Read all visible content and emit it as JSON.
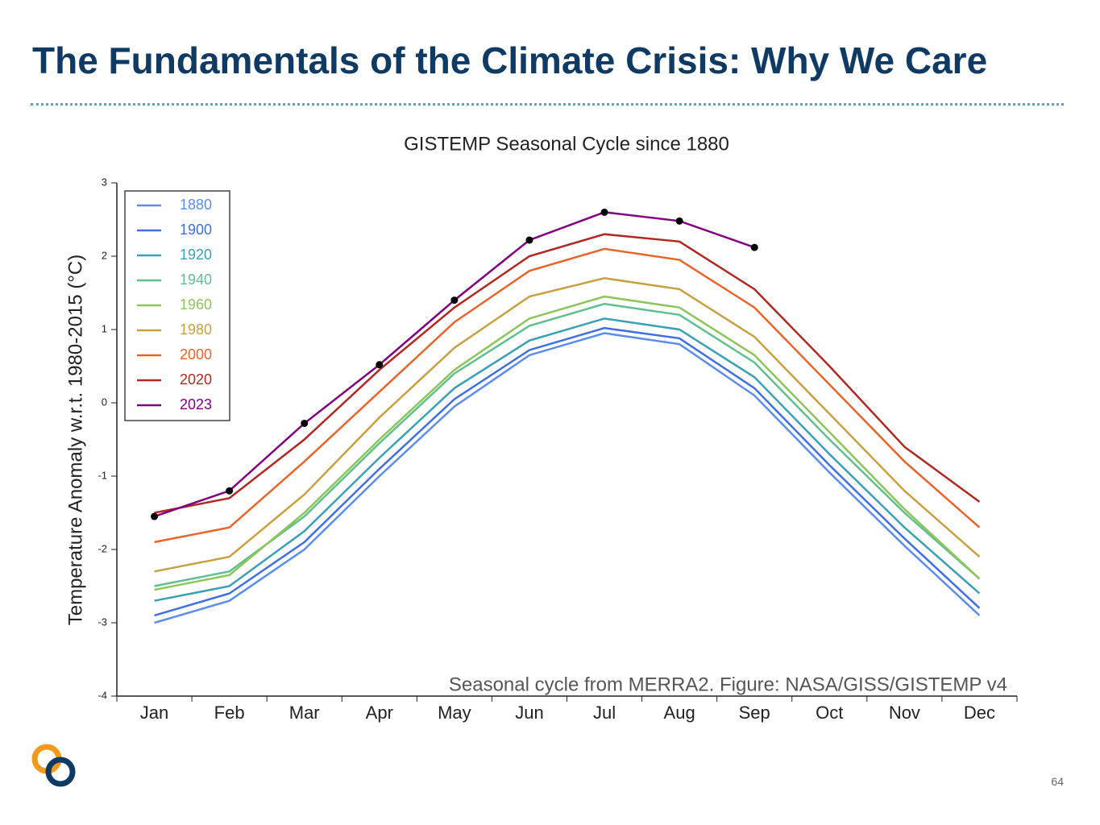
{
  "slide": {
    "title": "The Fundamentals of the Climate Crisis: Why We Care",
    "page_number": "64"
  },
  "chart_data": {
    "type": "line",
    "title": "GISTEMP Seasonal Cycle since 1880",
    "annotation": "Seasonal cycle from MERRA2. Figure: NASA/GISS/GISTEMP v4",
    "y_label": "Temperature Anomaly w.r.t. 1980-2015 (°C)",
    "categories": [
      "Jan",
      "Feb",
      "Mar",
      "Apr",
      "May",
      "Jun",
      "Jul",
      "Aug",
      "Sep",
      "Oct",
      "Nov",
      "Dec"
    ],
    "ylim": [
      -4,
      3
    ],
    "yticks": [
      -4,
      -3,
      -2,
      -1,
      0,
      1,
      2,
      3
    ],
    "legend": "upper left",
    "series": [
      {
        "name": "1880",
        "color": "#5b8def",
        "values": [
          -3.0,
          -2.7,
          -2.0,
          -1.0,
          -0.05,
          0.65,
          0.95,
          0.8,
          0.1,
          -0.95,
          -1.95,
          -2.9
        ]
      },
      {
        "name": "1900",
        "color": "#3f6fe0",
        "values": [
          -2.9,
          -2.6,
          -1.9,
          -0.9,
          0.05,
          0.72,
          1.02,
          0.88,
          0.2,
          -0.85,
          -1.85,
          -2.8
        ]
      },
      {
        "name": "1920",
        "color": "#3aa0b8",
        "values": [
          -2.7,
          -2.5,
          -1.75,
          -0.75,
          0.2,
          0.85,
          1.15,
          1.0,
          0.35,
          -0.7,
          -1.7,
          -2.6
        ]
      },
      {
        "name": "1940",
        "color": "#5fbf8f",
        "values": [
          -2.5,
          -2.3,
          -1.55,
          -0.55,
          0.4,
          1.05,
          1.35,
          1.2,
          0.55,
          -0.5,
          -1.5,
          -2.4
        ]
      },
      {
        "name": "1960",
        "color": "#8cc55a",
        "values": [
          -2.55,
          -2.35,
          -1.5,
          -0.5,
          0.45,
          1.15,
          1.45,
          1.3,
          0.65,
          -0.4,
          -1.45,
          -2.4
        ]
      },
      {
        "name": "1980",
        "color": "#c8a040",
        "values": [
          -2.3,
          -2.1,
          -1.25,
          -0.2,
          0.75,
          1.45,
          1.7,
          1.55,
          0.9,
          -0.15,
          -1.2,
          -2.1
        ]
      },
      {
        "name": "2000",
        "color": "#e8652a",
        "values": [
          -1.9,
          -1.7,
          -0.8,
          0.15,
          1.1,
          1.8,
          2.1,
          1.95,
          1.3,
          0.25,
          -0.8,
          -1.7
        ]
      },
      {
        "name": "2020",
        "color": "#b02820",
        "values": [
          -1.5,
          -1.3,
          -0.5,
          0.45,
          1.3,
          2.0,
          2.3,
          2.2,
          1.55,
          0.5,
          -0.6,
          -1.35
        ]
      },
      {
        "name": "2023",
        "color": "#800080",
        "marker_color": "#000000",
        "values": [
          -1.55,
          -1.2,
          -0.28,
          0.52,
          1.4,
          2.22,
          2.6,
          2.48,
          2.12,
          null,
          null,
          null
        ]
      }
    ]
  }
}
